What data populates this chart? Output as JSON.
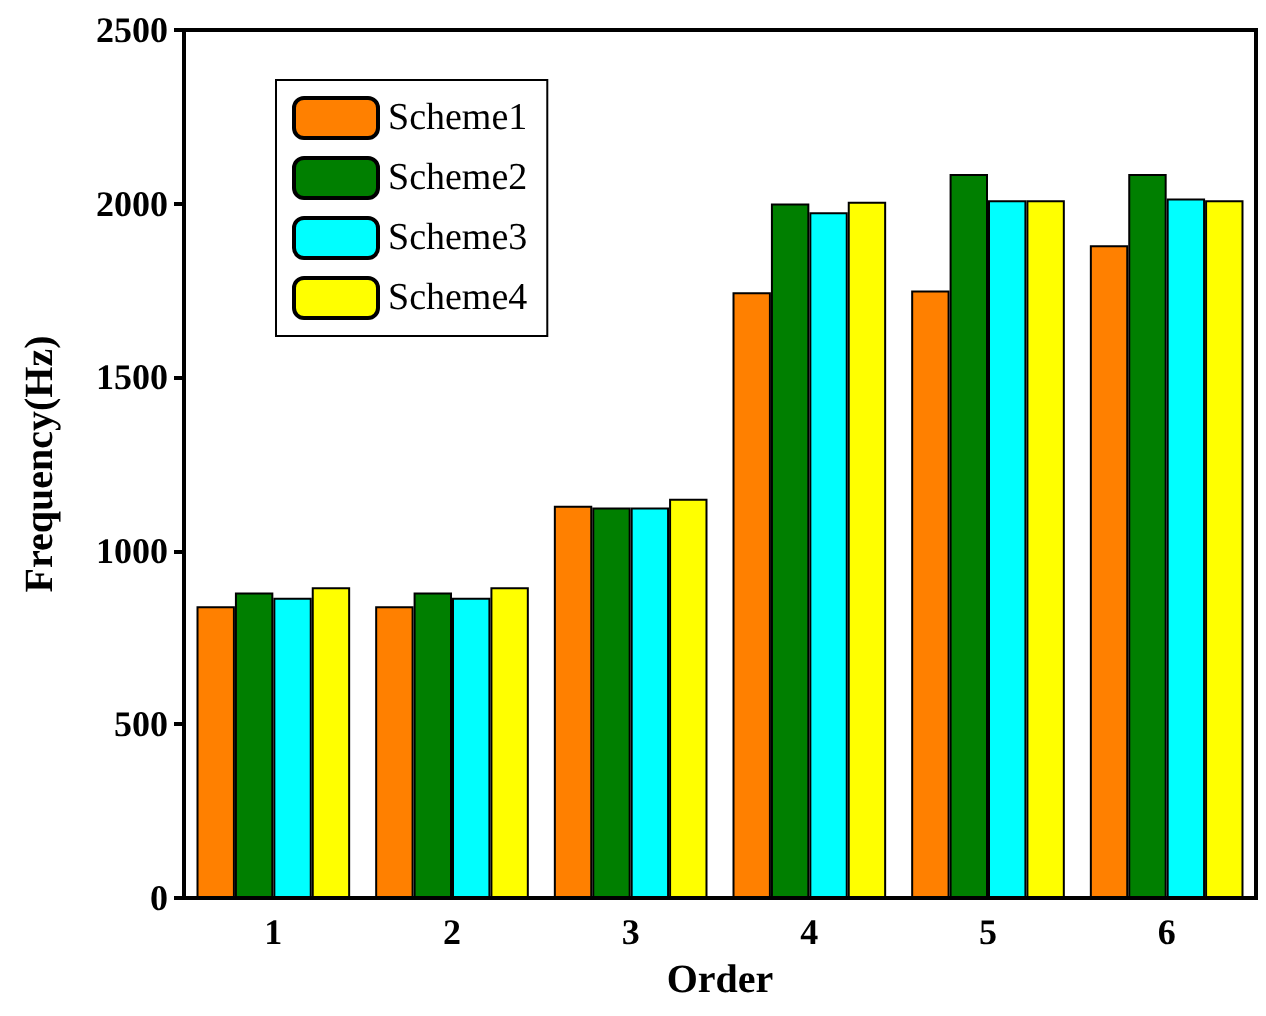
{
  "chart_data": {
    "type": "bar",
    "xlabel": "Order",
    "ylabel": "Frequency(Hz)",
    "categories": [
      "1",
      "2",
      "3",
      "4",
      "5",
      "6"
    ],
    "series": [
      {
        "name": "Scheme1",
        "color": "#ff8000",
        "values": [
          840,
          840,
          1130,
          1745,
          1750,
          1880
        ]
      },
      {
        "name": "Scheme2",
        "color": "#007f00",
        "values": [
          880,
          880,
          1125,
          2000,
          2085,
          2085
        ]
      },
      {
        "name": "Scheme3",
        "color": "#00ffff",
        "values": [
          865,
          865,
          1125,
          1975,
          2010,
          2015
        ]
      },
      {
        "name": "Scheme4",
        "color": "#ffff00",
        "values": [
          895,
          895,
          1150,
          2005,
          2010,
          2010
        ]
      }
    ],
    "ylim": [
      0,
      2500
    ],
    "yticks": [
      0,
      500,
      1000,
      1500,
      2000,
      2500
    ],
    "grid": false,
    "legend": "top left"
  }
}
